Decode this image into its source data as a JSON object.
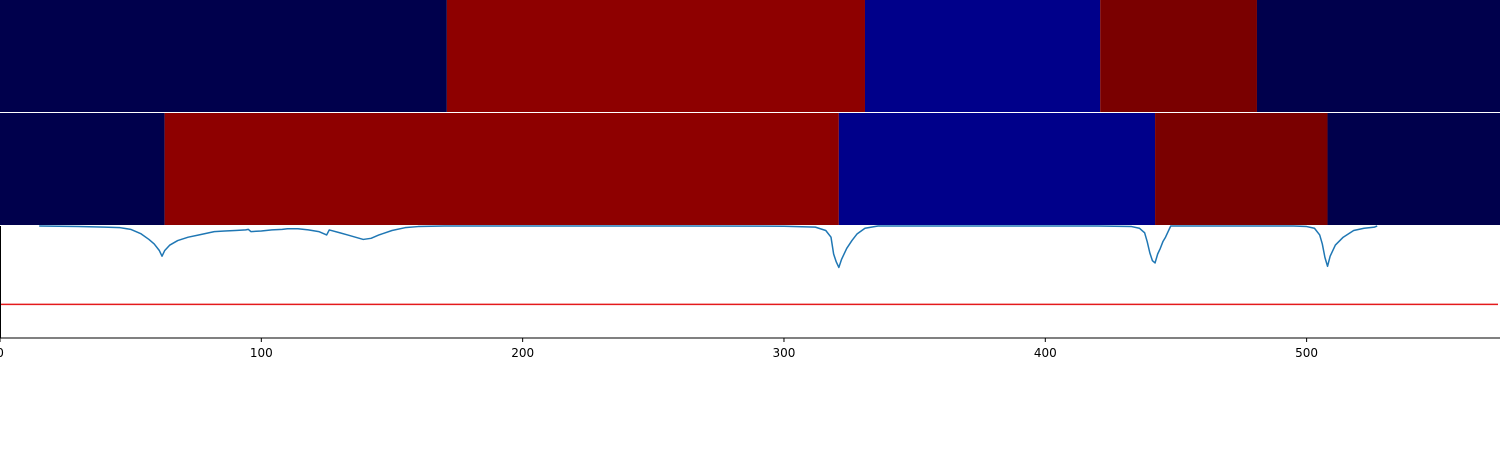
{
  "chart_data": {
    "type": "segmentation-comparison",
    "x_axis": {
      "range": [
        0,
        574
      ],
      "ticks": [
        0,
        100,
        200,
        300,
        400,
        500
      ],
      "tick_labels": [
        "0",
        "100",
        "200",
        "300",
        "400",
        "500"
      ]
    },
    "panels": [
      {
        "name": "",
        "type": "heatmap-bar",
        "segments": [
          {
            "start": 0,
            "end": 171,
            "color": "#00004c"
          },
          {
            "start": 171,
            "end": 331,
            "color": "#8e0000"
          },
          {
            "start": 331,
            "end": 421,
            "color": "#00008a"
          },
          {
            "start": 421,
            "end": 481,
            "color": "#7a0000"
          },
          {
            "start": 481,
            "end": 574,
            "color": "#00004c"
          }
        ]
      },
      {
        "name": "",
        "type": "heatmap-bar",
        "segments": [
          {
            "start": 0,
            "end": 63,
            "color": "#00004c"
          },
          {
            "start": 63,
            "end": 321,
            "color": "#8e0000"
          },
          {
            "start": 321,
            "end": 442,
            "color": "#00008a"
          },
          {
            "start": 442,
            "end": 508,
            "color": "#7a0000"
          },
          {
            "start": 508,
            "end": 574,
            "color": "#00004c"
          }
        ]
      },
      {
        "name": "",
        "type": "line",
        "y_range": [
          0,
          1
        ],
        "threshold": {
          "value": 0.3,
          "color": "#e41a1c"
        },
        "series": [
          {
            "name": "",
            "color": "#1f77b4",
            "points": [
              [
                15,
                1.0
              ],
              [
                30,
                0.995
              ],
              [
                40,
                0.99
              ],
              [
                46,
                0.985
              ],
              [
                50,
                0.97
              ],
              [
                54,
                0.93
              ],
              [
                57,
                0.88
              ],
              [
                59,
                0.84
              ],
              [
                61,
                0.78
              ],
              [
                62,
                0.73
              ],
              [
                63,
                0.78
              ],
              [
                65,
                0.83
              ],
              [
                68,
                0.87
              ],
              [
                72,
                0.9
              ],
              [
                76,
                0.92
              ],
              [
                80,
                0.94
              ],
              [
                82,
                0.95
              ],
              [
                86,
                0.955
              ],
              [
                90,
                0.96
              ],
              [
                94,
                0.965
              ],
              [
                95,
                0.97
              ],
              [
                96,
                0.95
              ],
              [
                100,
                0.955
              ],
              [
                104,
                0.965
              ],
              [
                108,
                0.97
              ],
              [
                110,
                0.975
              ],
              [
                114,
                0.975
              ],
              [
                118,
                0.965
              ],
              [
                122,
                0.95
              ],
              [
                125,
                0.92
              ],
              [
                126,
                0.965
              ],
              [
                130,
                0.94
              ],
              [
                133,
                0.92
              ],
              [
                136,
                0.9
              ],
              [
                139,
                0.88
              ],
              [
                142,
                0.89
              ],
              [
                145,
                0.92
              ],
              [
                150,
                0.96
              ],
              [
                155,
                0.985
              ],
              [
                160,
                0.995
              ],
              [
                170,
                1.0
              ],
              [
                200,
                1.0
              ],
              [
                260,
                1.0
              ],
              [
                300,
                0.998
              ],
              [
                312,
                0.99
              ],
              [
                316,
                0.96
              ],
              [
                318,
                0.9
              ],
              [
                319,
                0.75
              ],
              [
                320,
                0.68
              ],
              [
                321,
                0.63
              ],
              [
                322,
                0.7
              ],
              [
                324,
                0.8
              ],
              [
                326,
                0.87
              ],
              [
                328,
                0.93
              ],
              [
                331,
                0.98
              ],
              [
                336,
                1.0
              ],
              [
                420,
                1.0
              ],
              [
                433,
                0.995
              ],
              [
                436,
                0.98
              ],
              [
                438,
                0.94
              ],
              [
                439,
                0.86
              ],
              [
                440,
                0.76
              ],
              [
                441,
                0.69
              ],
              [
                442,
                0.67
              ],
              [
                443,
                0.75
              ],
              [
                444,
                0.8
              ],
              [
                445,
                0.86
              ],
              [
                446,
                0.9
              ],
              [
                447,
                0.95
              ],
              [
                448,
                1.0
              ],
              [
                495,
                1.0
              ],
              [
                500,
                0.995
              ],
              [
                503,
                0.98
              ],
              [
                505,
                0.92
              ],
              [
                506,
                0.84
              ],
              [
                507,
                0.72
              ],
              [
                508,
                0.64
              ],
              [
                509,
                0.73
              ],
              [
                511,
                0.83
              ],
              [
                514,
                0.9
              ],
              [
                518,
                0.96
              ],
              [
                522,
                0.98
              ],
              [
                526,
                0.99
              ],
              [
                527,
                1.0
              ]
            ]
          }
        ]
      }
    ]
  }
}
